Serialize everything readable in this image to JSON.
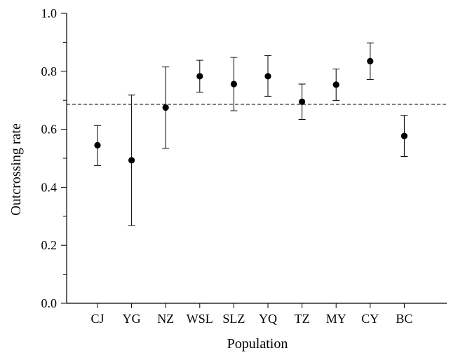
{
  "chart_data": {
    "type": "scatter",
    "xlabel": "Population",
    "ylabel": "Outcrossing rate",
    "ylim": [
      0.0,
      1.0
    ],
    "yticks": [
      "0.0",
      "0.2",
      "0.4",
      "0.6",
      "0.8",
      "1.0"
    ],
    "categories": [
      "CJ",
      "YG",
      "NZ",
      "WSL",
      "SLZ",
      "YQ",
      "TZ",
      "MY",
      "CY",
      "BC"
    ],
    "points": [
      {
        "category": "CJ",
        "value": 0.545,
        "lower": 0.475,
        "upper": 0.613
      },
      {
        "category": "YG",
        "value": 0.493,
        "lower": 0.268,
        "upper": 0.718
      },
      {
        "category": "NZ",
        "value": 0.675,
        "lower": 0.535,
        "upper": 0.815
      },
      {
        "category": "WSL",
        "value": 0.783,
        "lower": 0.728,
        "upper": 0.838
      },
      {
        "category": "SLZ",
        "value": 0.756,
        "lower": 0.664,
        "upper": 0.848
      },
      {
        "category": "YQ",
        "value": 0.783,
        "lower": 0.714,
        "upper": 0.854
      },
      {
        "category": "TZ",
        "value": 0.695,
        "lower": 0.634,
        "upper": 0.756
      },
      {
        "category": "MY",
        "value": 0.754,
        "lower": 0.699,
        "upper": 0.808
      },
      {
        "category": "CY",
        "value": 0.835,
        "lower": 0.772,
        "upper": 0.898
      },
      {
        "category": "BC",
        "value": 0.577,
        "lower": 0.506,
        "upper": 0.648
      }
    ],
    "reference_line": {
      "value": 0.686,
      "style": "dashed"
    },
    "grid": false,
    "legend": "none"
  }
}
